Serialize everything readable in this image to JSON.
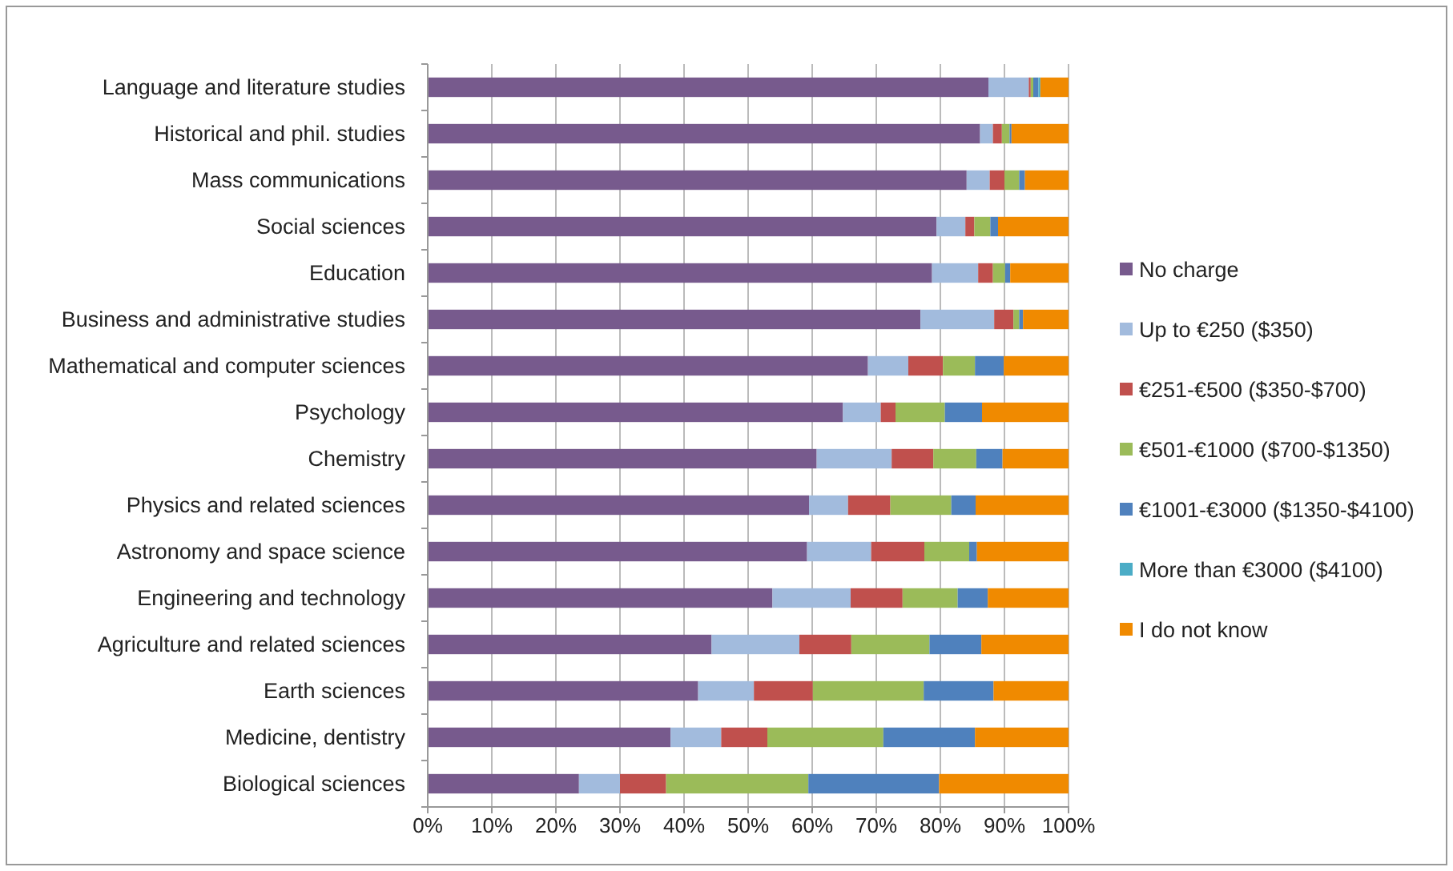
{
  "chart_data": {
    "type": "bar",
    "orientation": "horizontal",
    "stacked": true,
    "categories": [
      "Language and literature studies",
      "Historical and phil. studies",
      "Mass communications",
      "Social sciences",
      "Education",
      "Business and administrative studies",
      "Mathematical and computer sciences",
      "Psychology",
      "Chemistry",
      "Physics and related sciences",
      "Astronomy and space science",
      "Engineering and technology",
      "Agriculture and related sciences",
      "Earth sciences",
      "Medicine, dentistry",
      "Biological sciences"
    ],
    "series": [
      {
        "name": "No charge",
        "color": "#775a8d",
        "values": [
          87.5,
          86.2,
          84.1,
          79.4,
          78.7,
          76.9,
          68.7,
          64.8,
          60.7,
          59.5,
          59.2,
          53.8,
          44.3,
          42.2,
          37.9,
          23.6
        ]
      },
      {
        "name": "Up to €250 ($350)",
        "color": "#a2bbdd",
        "values": [
          6.3,
          2.0,
          3.6,
          4.5,
          7.2,
          11.5,
          6.3,
          5.9,
          11.7,
          6.1,
          10.0,
          12.2,
          13.7,
          8.7,
          7.9,
          6.4
        ]
      },
      {
        "name": "€251-€500 ($350-$700)",
        "color": "#c0504d",
        "values": [
          0.3,
          1.4,
          2.3,
          1.4,
          2.3,
          3.0,
          5.4,
          2.3,
          6.5,
          6.6,
          8.3,
          8.1,
          8.1,
          9.2,
          7.2,
          7.2
        ]
      },
      {
        "name": "€501-€1000 ($700-$1350)",
        "color": "#9bbb59",
        "values": [
          0.4,
          1.2,
          2.3,
          2.5,
          1.9,
          0.9,
          5.0,
          7.7,
          6.7,
          9.5,
          7.0,
          8.6,
          12.2,
          17.3,
          18.1,
          22.2
        ]
      },
      {
        "name": "€1001-€3000 ($1350-$4100)",
        "color": "#4f81bd",
        "values": [
          0.8,
          0.3,
          0.9,
          1.2,
          0.8,
          0.6,
          4.5,
          5.8,
          4.1,
          3.8,
          1.2,
          4.7,
          8.1,
          10.9,
          14.3,
          20.4
        ]
      },
      {
        "name": "More than €3000 ($4100)",
        "color": "#4bacc6",
        "values": [
          0.3,
          0,
          0,
          0,
          0,
          0,
          0,
          0,
          0,
          0,
          0,
          0,
          0,
          0,
          0,
          0
        ]
      },
      {
        "name": "I do not know",
        "color": "#f08a00",
        "values": [
          4.4,
          8.9,
          6.8,
          11.0,
          9.1,
          7.1,
          10.1,
          13.5,
          10.3,
          14.5,
          14.3,
          12.6,
          13.6,
          11.7,
          14.6,
          20.2
        ]
      }
    ],
    "xlim": [
      0,
      100
    ],
    "xticks": [
      {
        "value": 0,
        "label": "0%"
      },
      {
        "value": 10,
        "label": "10%"
      },
      {
        "value": 20,
        "label": "20%"
      },
      {
        "value": 30,
        "label": "30%"
      },
      {
        "value": 40,
        "label": "40%"
      },
      {
        "value": 50,
        "label": "50%"
      },
      {
        "value": 60,
        "label": "60%"
      },
      {
        "value": 70,
        "label": "70%"
      },
      {
        "value": 80,
        "label": "80%"
      },
      {
        "value": 90,
        "label": "90%"
      },
      {
        "value": 100,
        "label": "100%"
      }
    ],
    "grid": "x",
    "legend": "right"
  }
}
